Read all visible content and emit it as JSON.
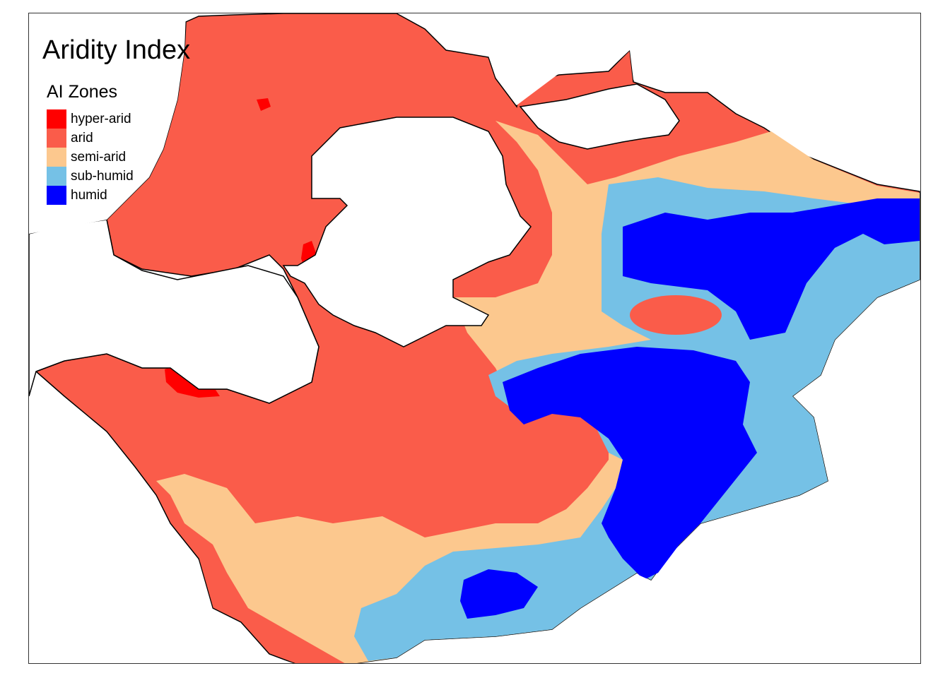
{
  "map": {
    "title": "Aridity Index",
    "legend": {
      "title": "AI Zones",
      "items": [
        {
          "label": "hyper-arid",
          "color": "#ff0000"
        },
        {
          "label": "arid",
          "color": "#fa5c4a"
        },
        {
          "label": "semi-arid",
          "color": "#fcc88e"
        },
        {
          "label": "sub-humid",
          "color": "#75c1e6"
        },
        {
          "label": "humid",
          "color": "#0000ff"
        }
      ]
    }
  }
}
